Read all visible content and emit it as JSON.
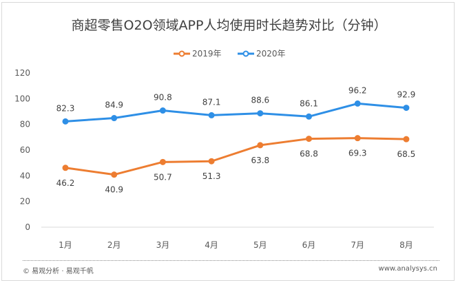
{
  "chart_data": {
    "type": "line",
    "title": "商超零售O2O领域APP人均使用时长趋势对比（分钟）",
    "categories": [
      "1月",
      "2月",
      "3月",
      "4月",
      "5月",
      "6月",
      "7月",
      "8月"
    ],
    "series": [
      {
        "name": "2019年",
        "color": "#ED7D31",
        "values": [
          46.2,
          40.9,
          50.7,
          51.3,
          63.8,
          68.8,
          69.3,
          68.5
        ],
        "label_pos": "below"
      },
      {
        "name": "2020年",
        "color": "#2E8FE6",
        "values": [
          82.3,
          84.9,
          90.8,
          87.1,
          88.6,
          86.1,
          96.2,
          92.9
        ],
        "label_pos": "above"
      }
    ],
    "yticks": [
      0,
      20,
      40,
      60,
      80,
      100,
      120
    ],
    "ylim": [
      0,
      120
    ],
    "legend": "top-center",
    "grid": false
  },
  "footer": {
    "source": "© 易观分析 · 易观千帆",
    "url": "www.analysys.cn"
  }
}
